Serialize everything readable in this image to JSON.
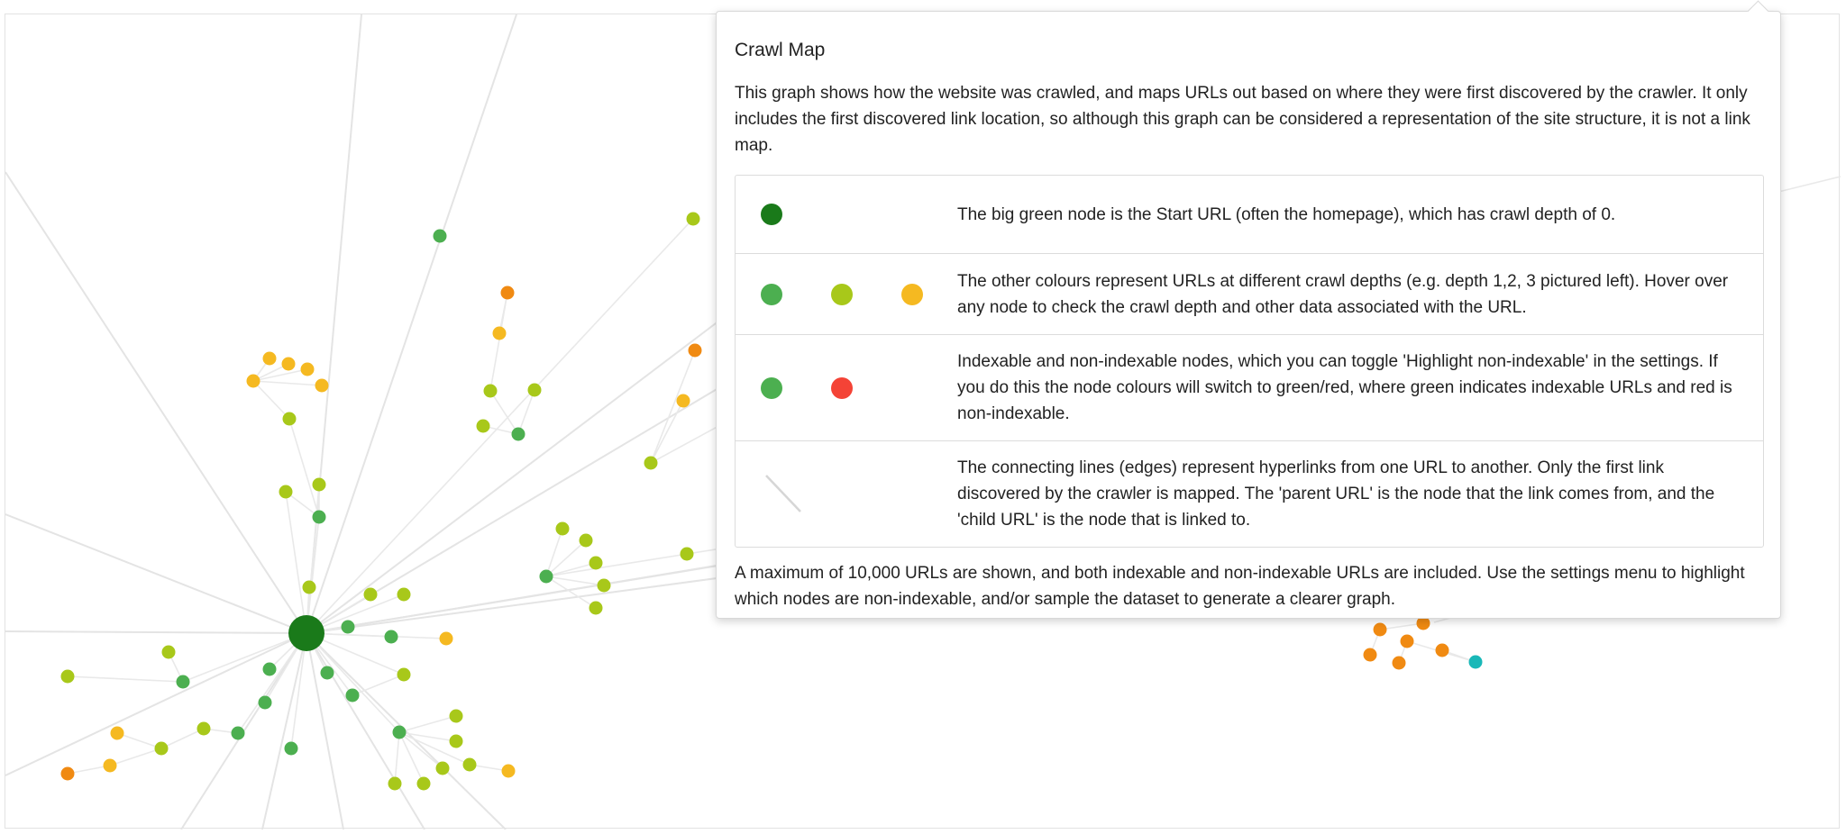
{
  "popover": {
    "title": "Crawl Map",
    "intro": "This graph shows how the website was crawled, and maps URLs out based on where they were first discovered by the crawler. It only includes the first discovered link location, so although this graph can be considered a representation of the site structure, it is not a link map.",
    "legend": [
      {
        "swatches": [
          "start-node"
        ],
        "text": "The big green node is the Start URL (often the homepage), which has crawl depth of 0."
      },
      {
        "swatches": [
          "depth-1",
          "depth-2",
          "depth-3"
        ],
        "text": "The other colours represent URLs at different crawl depths (e.g. depth 1,2, 3 pictured left). Hover over any node to check the crawl depth and other data associated with the URL."
      },
      {
        "swatches": [
          "indexable",
          "non-indexable"
        ],
        "text": "Indexable and non-indexable nodes, which you can toggle 'Highlight non-indexable' in the settings. If you do this the node colours will switch to green/red, where green indicates indexable URLs and red is non-indexable."
      },
      {
        "swatches": [
          "edge"
        ],
        "text": "The connecting lines (edges) represent hyperlinks from one URL to another. Only the first link discovered by the crawler is mapped. The 'parent URL' is the node that the link comes from, and the 'child URL' is the node that is linked to."
      }
    ],
    "footer": "A maximum of 10,000 URLs are shown, and both indexable and non-indexable URLs are included. Use the settings menu to highlight which nodes are non-indexable, and/or sample the dataset to generate a clearer graph."
  },
  "colors": {
    "start": "#1a7a1a",
    "depth1": "#4caf50",
    "depth2": "#a8c81a",
    "depth3": "#f5b921",
    "depth4": "#f59a1f",
    "depth5": "#f08a12",
    "depth6": "#19b8b8",
    "non_indexable": "#f44336",
    "edge": "#e6e6e6"
  }
}
